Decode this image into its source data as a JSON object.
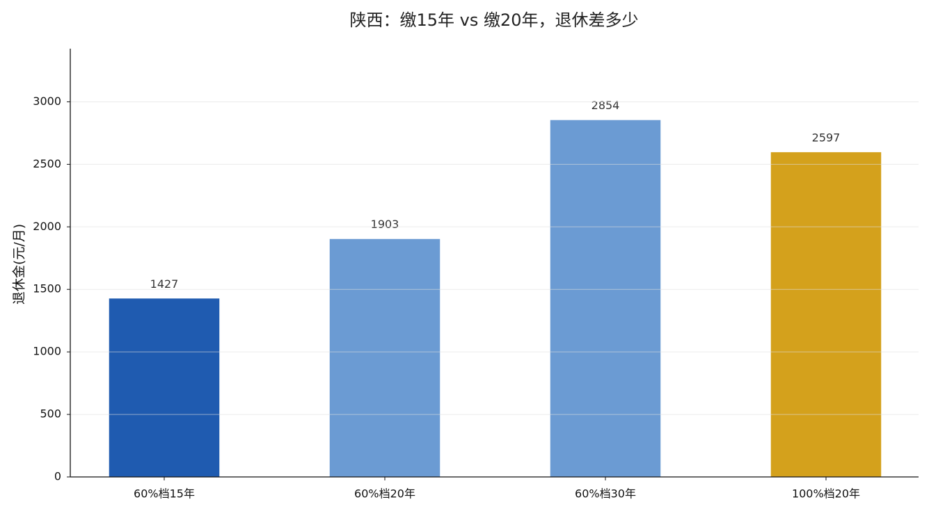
{
  "chart_data": {
    "type": "bar",
    "title": "陕西：缴15年 vs 缴20年，退休差多少",
    "y_label": "退休金(元/月)",
    "categories": [
      "60%档15年",
      "60%档20年",
      "60%档30年",
      "100%档20年"
    ],
    "values": [
      1427,
      1903,
      2854,
      2597
    ],
    "colors": [
      "#1f5bb0",
      "#6b9bd3",
      "#6b9bd3",
      "#d4a11c"
    ],
    "ylim": [
      0,
      3425
    ],
    "yticks": [
      0,
      500,
      1000,
      1500,
      2000,
      2500,
      3000
    ],
    "grid": true
  }
}
